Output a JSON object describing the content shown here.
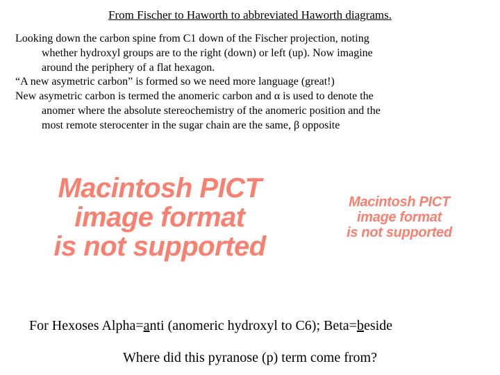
{
  "title": "From Fischer to Haworth to abbreviated Haworth diagrams.",
  "para1_line1": "Looking down the carbon spine from C1 down of the Fischer projection, noting",
  "para1_line2": "whether hydroxyl groups are to the right (down) or left (up). Now imagine",
  "para1_line3": "around the periphery of a flat hexagon.",
  "para2": "“A new asymetric carbon” is formed so we need more language (great!)",
  "para3_line1": "New asymetric carbon is termed the anomeric carbon and α is used to denote the",
  "para3_line2": "anomer where the absolute stereochemistry of the anomeric position and the",
  "para3_line3": "most remote sterocenter in the sugar chain are the same, β opposite",
  "pict": {
    "line1": "Macintosh PICT",
    "line2": "image format",
    "line3": "is not supported",
    "color": "#f88070"
  },
  "hexoses": {
    "pre": "For Hexoses Alpha=",
    "a": "a",
    "mid": "nti (anomeric hydroxyl to C6); Beta=",
    "b": "b",
    "post": "eside"
  },
  "pyranose": "Where did this pyranose (p) term come from?"
}
